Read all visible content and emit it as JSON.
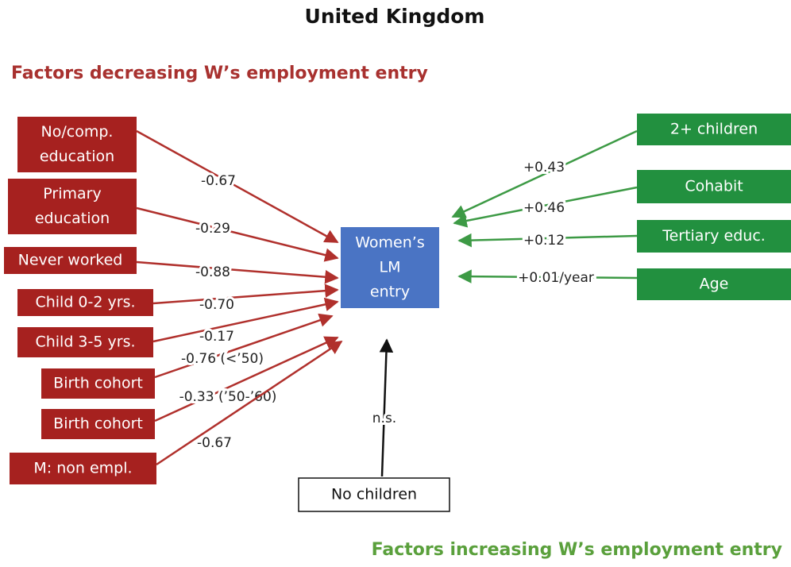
{
  "title": "United Kingdom",
  "decreasing_heading": "Factors decreasing W’s employment entry",
  "increasing_heading": "Factors increasing W’s employment entry",
  "outcome": {
    "lines": [
      "Women’s",
      "LM",
      "entry"
    ]
  },
  "decreasing_factors": [
    {
      "lines": [
        "No/comp.",
        "education"
      ],
      "effect": "-0.67"
    },
    {
      "lines": [
        "Primary",
        "education"
      ],
      "effect": "-0.29"
    },
    {
      "lines": [
        "Never worked"
      ],
      "effect": "-0.88"
    },
    {
      "lines": [
        "Child 0-2 yrs."
      ],
      "effect": "-0.70"
    },
    {
      "lines": [
        "Child 3-5 yrs."
      ],
      "effect": "-0.17"
    },
    {
      "lines": [
        "Birth cohort"
      ],
      "effect": "-0.76 (<’50)"
    },
    {
      "lines": [
        "Birth cohort"
      ],
      "effect": "-0.33 (’50-’60)"
    },
    {
      "lines": [
        "M: non empl."
      ],
      "effect": "-0.67"
    }
  ],
  "increasing_factors": [
    {
      "lines": [
        "2+ children"
      ],
      "effect": "+0.43"
    },
    {
      "lines": [
        "Cohabit"
      ],
      "effect": "+0.46"
    },
    {
      "lines": [
        "Tertiary educ."
      ],
      "effect": "+0.12"
    },
    {
      "lines": [
        "Age"
      ],
      "effect": "+0.01/year"
    }
  ],
  "neutral_factor": {
    "lines": [
      "No children"
    ],
    "effect": "n.s."
  }
}
